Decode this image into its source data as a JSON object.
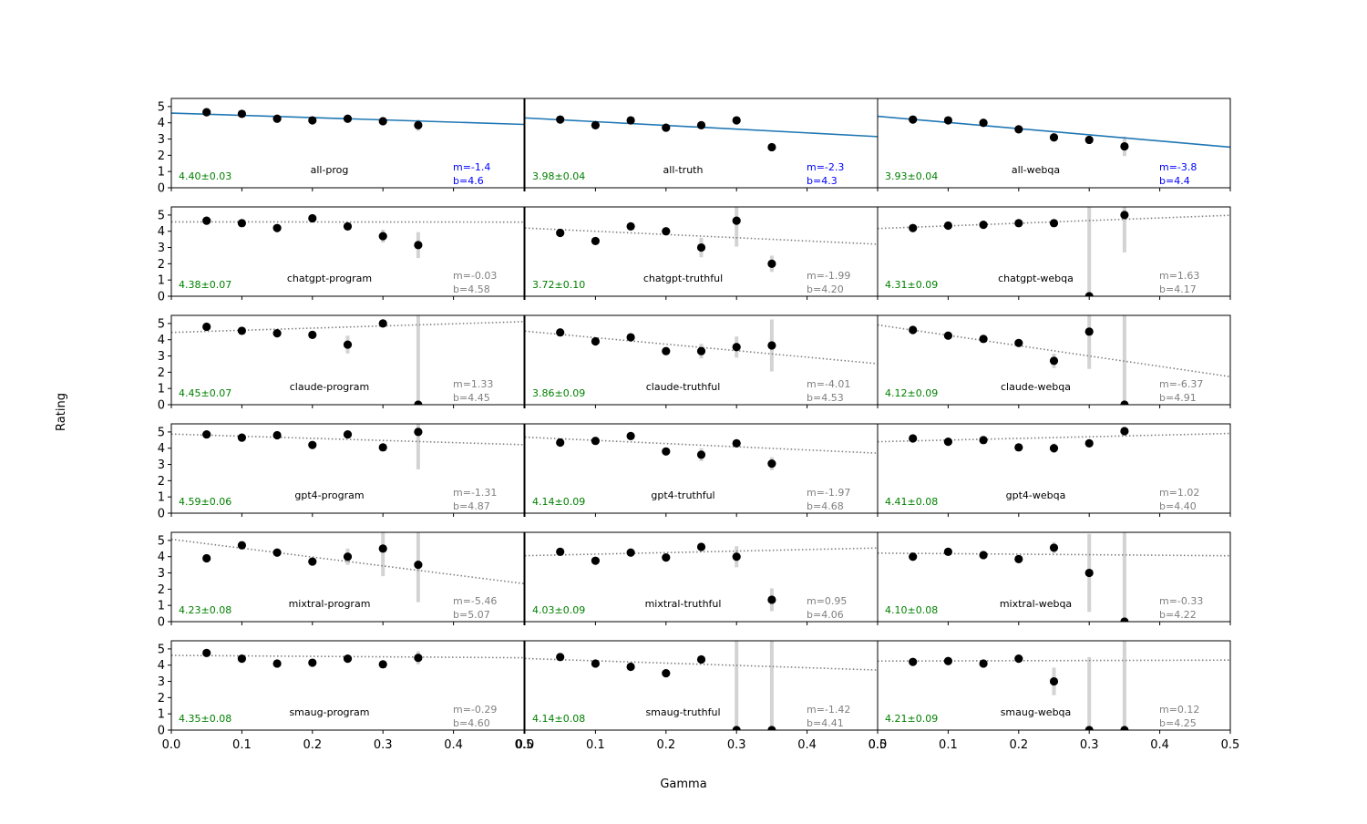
{
  "figure": {
    "xlabel": "Gamma",
    "ylabel": "Rating"
  },
  "colors": {
    "fit_line": "#1f77b4",
    "fit_dotted": "#808080",
    "points": "#000000",
    "error_bars": "#d3d3d3",
    "mean_text": "#008000",
    "fit_text_all": "#0000ff",
    "fit_text_model": "#808080"
  },
  "chart_data": {
    "type": "scatter",
    "layout": "6x3 small multiples",
    "x_ticks": [
      0.0,
      0.1,
      0.2,
      0.3,
      0.4,
      0.5
    ],
    "x_tick_labels": [
      "0.0",
      "0.1",
      "0.2",
      "0.3",
      "0.4",
      "0.5"
    ],
    "y_ticks": [
      0,
      1,
      2,
      3,
      4,
      5
    ],
    "y_tick_labels": [
      "0",
      "1",
      "2",
      "3",
      "4",
      "5"
    ],
    "xlim": [
      0,
      0.5
    ],
    "ylim": [
      0,
      5.5
    ],
    "x": [
      0.05,
      0.1,
      0.15,
      0.2,
      0.25,
      0.3,
      0.35
    ],
    "panels": [
      {
        "label": "all-prog",
        "mean": "4.40±0.03",
        "m_label": "m=-1.4",
        "b_label": "b=4.6",
        "m": -1.4,
        "b": 4.6,
        "line": "solid",
        "y": [
          4.65,
          4.55,
          4.25,
          4.15,
          4.25,
          4.1,
          3.85
        ],
        "err": [
          0.1,
          0.1,
          0.1,
          0.1,
          0.1,
          0.15,
          0.35
        ]
      },
      {
        "label": "all-truth",
        "mean": "3.98±0.04",
        "m_label": "m=-2.3",
        "b_label": "b=4.3",
        "m": -2.3,
        "b": 4.3,
        "line": "solid",
        "y": [
          4.2,
          3.85,
          4.15,
          3.7,
          3.85,
          4.15,
          2.5
        ],
        "err": [
          0.1,
          0.1,
          0.1,
          0.1,
          0.1,
          0.1,
          0.1
        ]
      },
      {
        "label": "all-webqa",
        "mean": "3.93±0.04",
        "m_label": "m=-3.8",
        "b_label": "b=4.4",
        "m": -3.8,
        "b": 4.4,
        "line": "solid",
        "y": [
          4.2,
          4.15,
          4.0,
          3.6,
          3.1,
          2.95,
          2.55
        ],
        "err": [
          0.1,
          0.1,
          0.1,
          0.1,
          0.1,
          0.1,
          0.6
        ]
      },
      {
        "label": "chatgpt-program",
        "mean": "4.38±0.07",
        "m_label": "m=-0.03",
        "b_label": "b=4.58",
        "m": -0.03,
        "b": 4.58,
        "line": "dotted",
        "y": [
          4.65,
          4.5,
          4.2,
          4.8,
          4.3,
          3.7,
          3.15
        ],
        "err": [
          0.1,
          0.1,
          0.1,
          0.1,
          0.1,
          0.4,
          0.8
        ]
      },
      {
        "label": "chatgpt-truthful",
        "mean": "3.72±0.10",
        "m_label": "m=-1.99",
        "b_label": "b=4.20",
        "m": -1.99,
        "b": 4.2,
        "line": "dotted",
        "y": [
          3.9,
          3.4,
          4.3,
          4.0,
          3.0,
          4.65,
          2.0
        ],
        "err": [
          0.1,
          0.1,
          0.1,
          0.1,
          0.6,
          1.6,
          0.5
        ]
      },
      {
        "label": "chatgpt-webqa",
        "mean": "4.31±0.09",
        "m_label": "m=1.63",
        "b_label": "b=4.17",
        "m": 1.63,
        "b": 4.17,
        "line": "dotted",
        "y": [
          4.2,
          4.35,
          4.4,
          4.5,
          4.5,
          0.0,
          5.0
        ],
        "err": [
          0.1,
          0.1,
          0.1,
          0.1,
          0.1,
          6.0,
          2.3
        ]
      },
      {
        "label": "claude-program",
        "mean": "4.45±0.07",
        "m_label": "m=1.33",
        "b_label": "b=4.45",
        "m": 1.33,
        "b": 4.45,
        "line": "dotted",
        "y": [
          4.8,
          4.55,
          4.4,
          4.3,
          3.7,
          5.0,
          0.0
        ],
        "err": [
          0.1,
          0.1,
          0.1,
          0.1,
          0.55,
          0.1,
          6.0
        ]
      },
      {
        "label": "claude-truthful",
        "mean": "3.86±0.09",
        "m_label": "m=-4.01",
        "b_label": "b=4.53",
        "m": -4.01,
        "b": 4.53,
        "line": "dotted",
        "y": [
          4.45,
          3.9,
          4.15,
          3.3,
          3.3,
          3.55,
          3.65
        ],
        "err": [
          0.1,
          0.1,
          0.1,
          0.1,
          0.45,
          0.65,
          1.6
        ]
      },
      {
        "label": "claude-webqa",
        "mean": "4.12±0.09",
        "m_label": "m=-6.37",
        "b_label": "b=4.91",
        "m": -6.37,
        "b": 4.91,
        "line": "dotted",
        "y": [
          4.6,
          4.25,
          4.05,
          3.8,
          2.7,
          4.5,
          0.0
        ],
        "err": [
          0.1,
          0.1,
          0.1,
          0.2,
          0.45,
          2.3,
          6.0
        ]
      },
      {
        "label": "gpt4-program",
        "mean": "4.59±0.06",
        "m_label": "m=-1.31",
        "b_label": "b=4.87",
        "m": -1.31,
        "b": 4.87,
        "line": "dotted",
        "y": [
          4.85,
          4.65,
          4.8,
          4.2,
          4.85,
          4.05,
          5.0
        ],
        "err": [
          0.1,
          0.1,
          0.1,
          0.1,
          0.1,
          0.1,
          2.3
        ]
      },
      {
        "label": "gpt4-truthful",
        "mean": "4.14±0.09",
        "m_label": "m=-1.97",
        "b_label": "b=4.68",
        "m": -1.97,
        "b": 4.68,
        "line": "dotted",
        "y": [
          4.35,
          4.45,
          4.75,
          3.8,
          3.6,
          4.3,
          3.05
        ],
        "err": [
          0.1,
          0.1,
          0.1,
          0.1,
          0.4,
          0.1,
          0.4
        ]
      },
      {
        "label": "gpt4-webqa",
        "mean": "4.41±0.08",
        "m_label": "m=1.02",
        "b_label": "b=4.40",
        "m": 1.02,
        "b": 4.4,
        "line": "dotted",
        "y": [
          4.6,
          4.4,
          4.5,
          4.05,
          4.0,
          4.3,
          5.05
        ],
        "err": [
          0.1,
          0.1,
          0.1,
          0.1,
          0.3,
          0.1,
          0.1
        ]
      },
      {
        "label": "mixtral-program",
        "mean": "4.23±0.08",
        "m_label": "m=-5.46",
        "b_label": "b=5.07",
        "m": -5.46,
        "b": 5.07,
        "line": "dotted",
        "y": [
          3.9,
          4.7,
          4.25,
          3.7,
          4.0,
          4.5,
          3.5
        ],
        "err": [
          0.2,
          0.1,
          0.1,
          0.1,
          0.5,
          1.7,
          2.3
        ]
      },
      {
        "label": "mixtral-truthful",
        "mean": "4.03±0.09",
        "m_label": "m=0.95",
        "b_label": "b=4.06",
        "m": 0.95,
        "b": 4.06,
        "line": "dotted",
        "y": [
          4.3,
          3.75,
          4.25,
          3.95,
          4.6,
          4.0,
          1.35
        ],
        "err": [
          0.1,
          0.1,
          0.1,
          0.1,
          0.1,
          0.65,
          0.7
        ]
      },
      {
        "label": "mixtral-webqa",
        "mean": "4.10±0.08",
        "m_label": "m=-0.33",
        "b_label": "b=4.22",
        "m": -0.33,
        "b": 4.22,
        "line": "dotted",
        "y": [
          4.0,
          4.3,
          4.1,
          3.85,
          4.55,
          3.0,
          0.0
        ],
        "err": [
          0.1,
          0.1,
          0.1,
          0.1,
          0.35,
          2.4,
          6.0
        ]
      },
      {
        "label": "smaug-program",
        "mean": "4.35±0.08",
        "m_label": "m=-0.29",
        "b_label": "b=4.60",
        "m": -0.29,
        "b": 4.6,
        "line": "dotted",
        "y": [
          4.75,
          4.4,
          4.1,
          4.15,
          4.4,
          4.05,
          4.45
        ],
        "err": [
          0.1,
          0.1,
          0.1,
          0.1,
          0.1,
          0.1,
          0.4
        ]
      },
      {
        "label": "smaug-truthful",
        "mean": "4.14±0.08",
        "m_label": "m=-1.42",
        "b_label": "b=4.41",
        "m": -1.42,
        "b": 4.41,
        "line": "dotted",
        "y": [
          4.5,
          4.1,
          3.9,
          3.5,
          4.35,
          0.0,
          0.0
        ],
        "err": [
          0.1,
          0.1,
          0.1,
          0.1,
          0.1,
          6.0,
          6.0
        ]
      },
      {
        "label": "smaug-webqa",
        "mean": "4.21±0.09",
        "m_label": "m=0.12",
        "b_label": "b=4.25",
        "m": 0.12,
        "b": 4.25,
        "line": "dotted",
        "y": [
          4.2,
          4.25,
          4.1,
          4.4,
          3.0,
          0.0,
          0.0
        ],
        "err": [
          0.1,
          0.1,
          0.1,
          0.1,
          0.85,
          4.5,
          6.0
        ]
      }
    ]
  }
}
